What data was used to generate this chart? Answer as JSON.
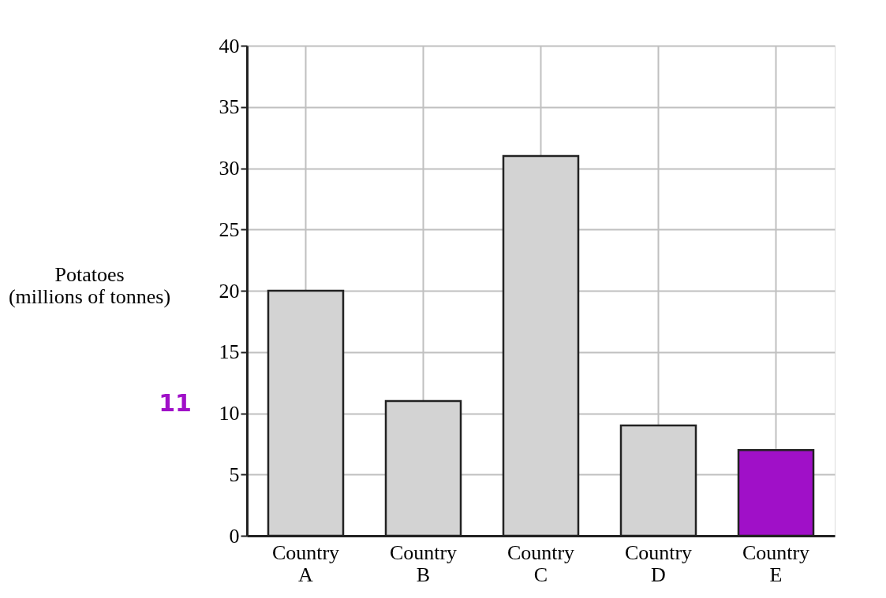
{
  "chart_data": {
    "type": "bar",
    "ylabel": "Potatoes (millions of tonnes)",
    "categories": [
      "Country A",
      "Country B",
      "Country C",
      "Country D",
      "Country E"
    ],
    "values": [
      20,
      11,
      31,
      9,
      7
    ],
    "colors": [
      "#d3d3d3",
      "#d3d3d3",
      "#d3d3d3",
      "#d3d3d3",
      "#a010c8"
    ],
    "ylim": [
      0,
      40
    ],
    "yticks": [
      0,
      5,
      10,
      15,
      20,
      25,
      30,
      35,
      40
    ],
    "grid": true,
    "annotations": [
      "11"
    ]
  }
}
